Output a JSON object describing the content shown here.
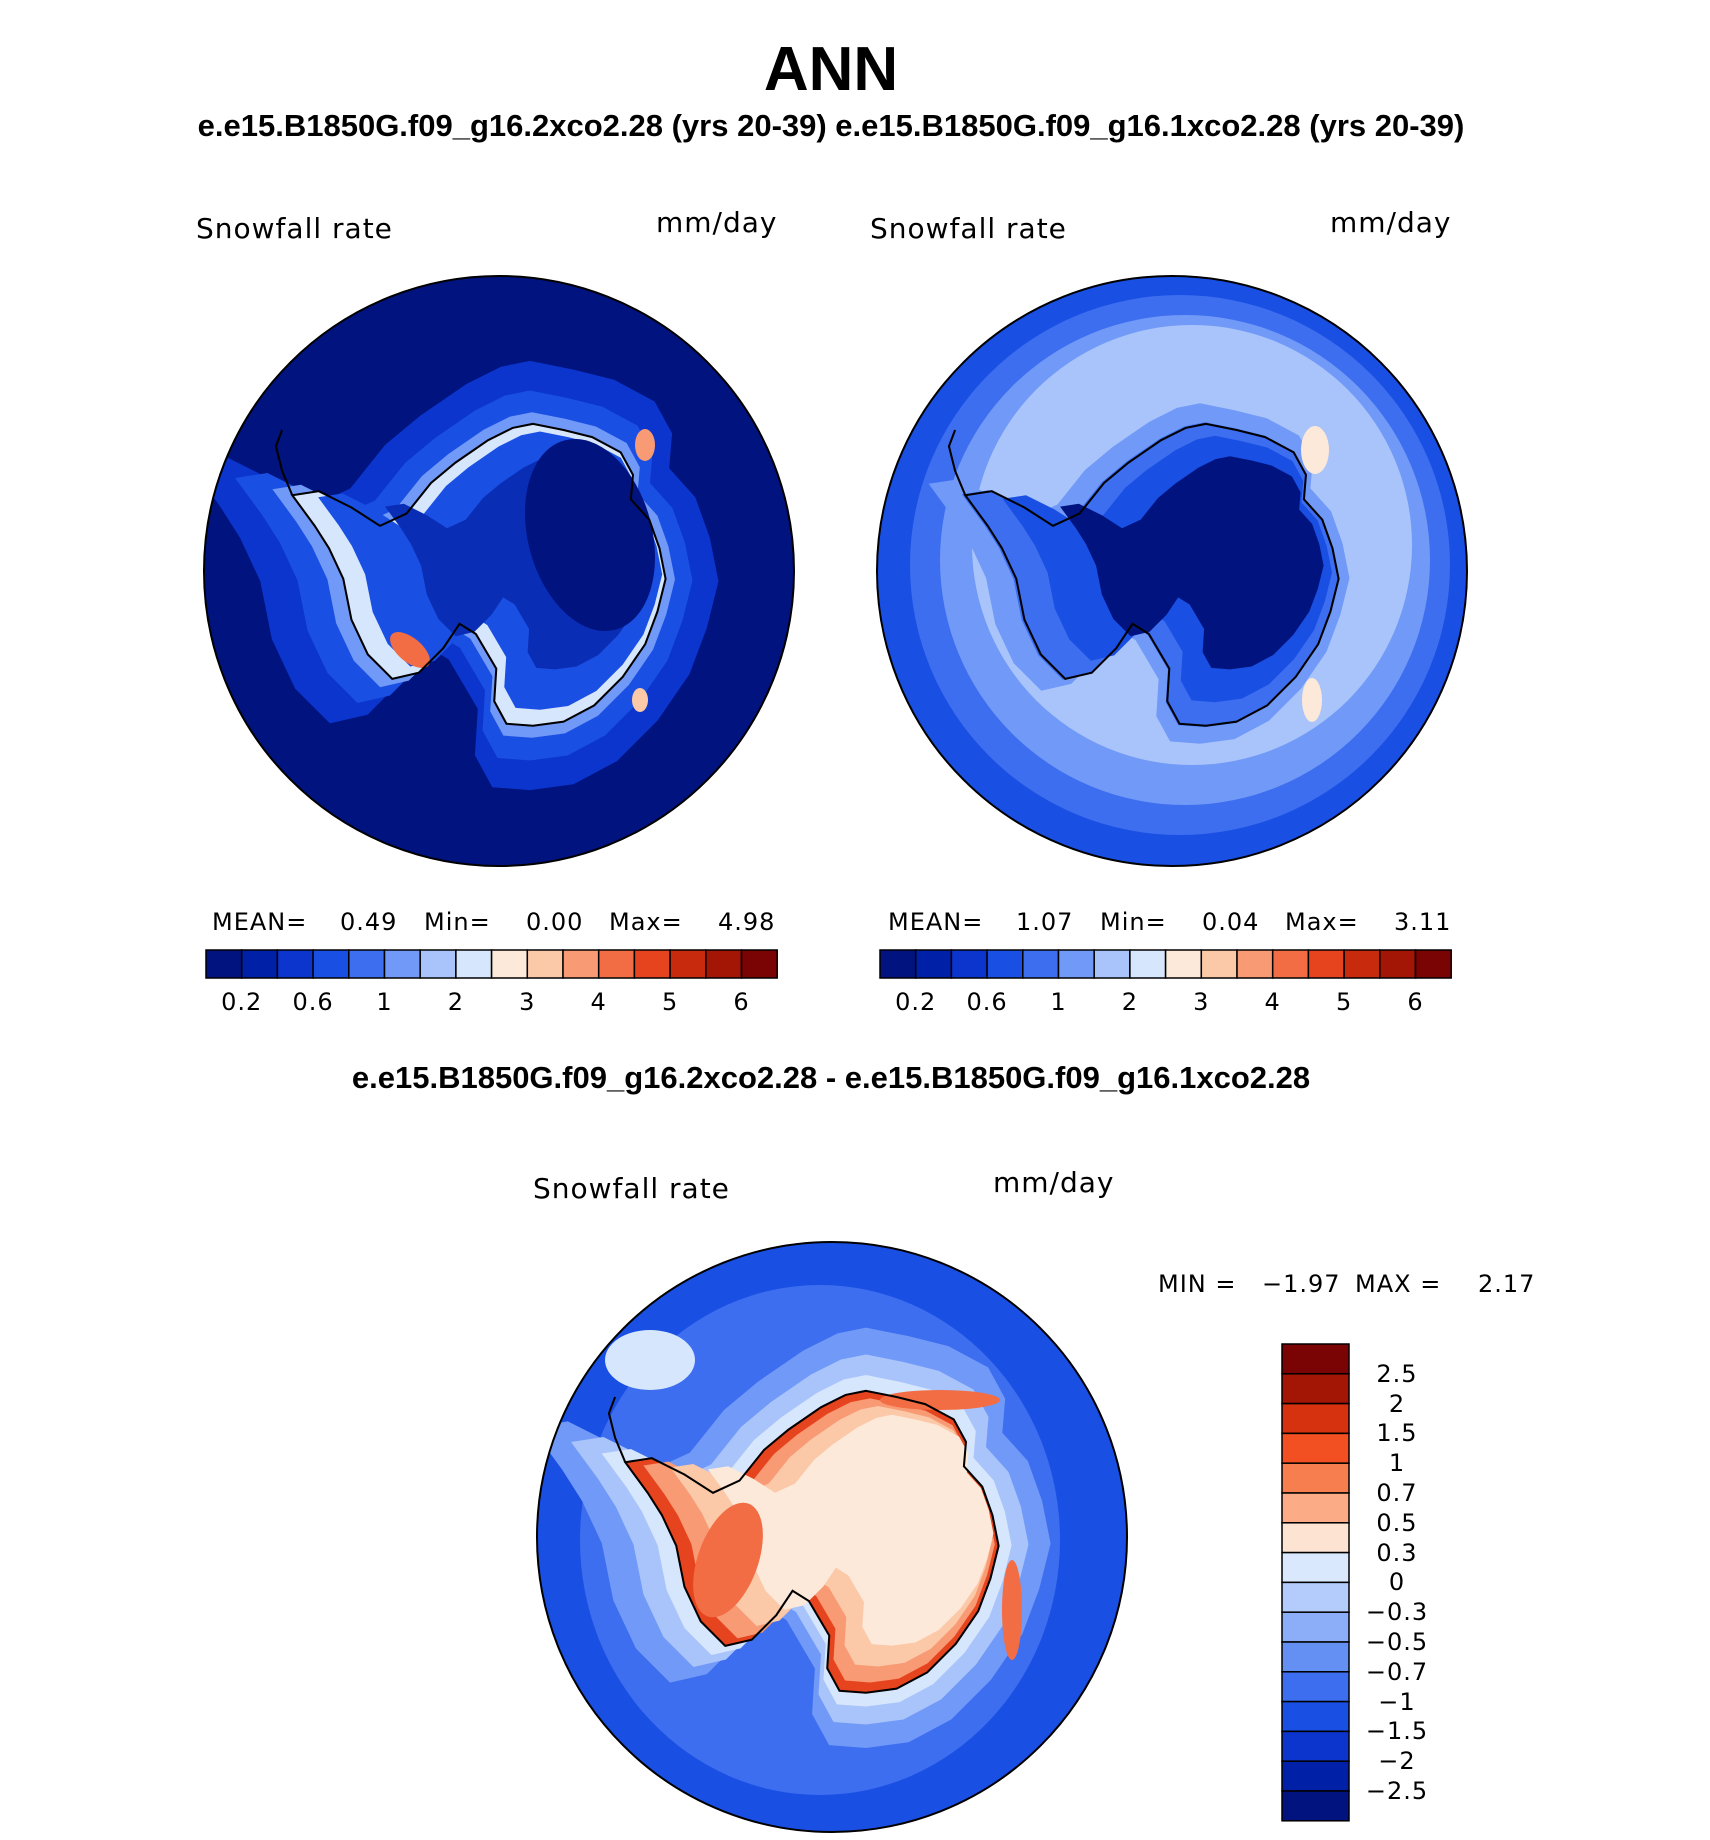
{
  "figure": {
    "title": "ANN",
    "subtitle": "e.e15.B1850G.f09_g16.2xco2.28 (yrs 20-39) e.e15.B1850G.f09_g16.1xco2.28 (yrs 20-39)",
    "diff_title": "e.e15.B1850G.f09_g16.2xco2.28 - e.e15.B1850G.f09_g16.1xco2.28"
  },
  "panels": [
    {
      "variable": "Snowfall rate",
      "units": "mm/day",
      "stats": {
        "mean_label": "MEAN=",
        "mean": "0.49",
        "min_label": "Min=",
        "min": "0.00",
        "max_label": "Max=",
        "max": "4.98"
      }
    },
    {
      "variable": "Snowfall rate",
      "units": "mm/day",
      "stats": {
        "mean_label": "MEAN=",
        "mean": "1.07",
        "min_label": "Min=",
        "min": "0.04",
        "max_label": "Max=",
        "max": "3.11"
      }
    },
    {
      "variable": "Snowfall rate",
      "units": "mm/day",
      "stats": {
        "min_label": "MIN =",
        "min": "−1.97",
        "max_label": "MAX =",
        "max": "2.17"
      }
    }
  ],
  "colorbar_abs": {
    "ticks": [
      "0.2",
      "0.6",
      "1",
      "2",
      "3",
      "4",
      "5",
      "6"
    ],
    "colors": [
      "#00137f",
      "#0020a8",
      "#0b35cc",
      "#1a4fe3",
      "#3d6ef0",
      "#7199f7",
      "#a9c4fb",
      "#d6e6fd",
      "#fde9d9",
      "#fbc8a8",
      "#f89a74",
      "#f26c44",
      "#e6441f",
      "#c72a0c",
      "#a31505",
      "#7a0303"
    ]
  },
  "colorbar_diff": {
    "ticks": [
      "2.5",
      "2",
      "1.5",
      "1",
      "0.7",
      "0.5",
      "0.3",
      "0",
      "−0.3",
      "−0.5",
      "−0.7",
      "−1",
      "−1.5",
      "−2",
      "−2.5"
    ],
    "colors": [
      "#7a0303",
      "#a31505",
      "#d6320f",
      "#f24f22",
      "#f77e4f",
      "#fbab85",
      "#fde4d2",
      "#d9e8fd",
      "#b4ccfb",
      "#8cadf8",
      "#6590f3",
      "#3d6ef0",
      "#1a4fe3",
      "#0b35cc",
      "#0020a8",
      "#00137f"
    ]
  },
  "map_colors": {
    "deep": "#00137f",
    "dark": "#0a2db6",
    "blue": "#1a4fe3",
    "mid": "#3d6ef0",
    "light": "#7199f7",
    "pale": "#a9c4fb",
    "paler": "#d6e6fd",
    "cream": "#fde9d9",
    "peach": "#fbc8a8",
    "salmon": "#f89a74",
    "orange": "#f26c44",
    "red": "#e6441f"
  }
}
